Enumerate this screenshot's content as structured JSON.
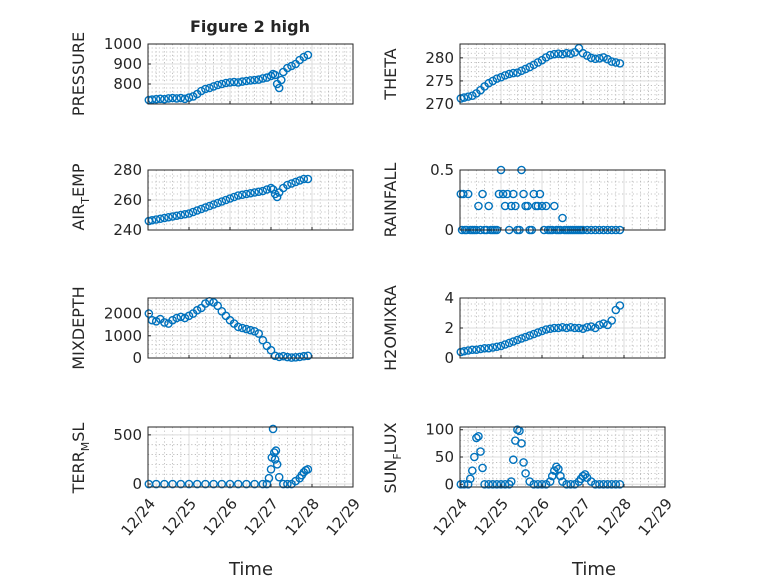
{
  "chart_data": [
    {
      "type": "scatter",
      "title": "Figure 2 high",
      "ylabel": "PRESSURE",
      "ylim": [
        700,
        1000
      ],
      "yticks": [
        800,
        900,
        1000
      ],
      "xlim": [
        "12/24",
        "12/29"
      ],
      "xticks": [
        "12/24",
        "12/25",
        "12/26",
        "12/27",
        "12/28",
        "12/29"
      ],
      "grid": true,
      "x": [
        0.02,
        0.1,
        0.2,
        0.3,
        0.4,
        0.5,
        0.6,
        0.7,
        0.8,
        0.9,
        1.0,
        1.1,
        1.2,
        1.3,
        1.4,
        1.5,
        1.6,
        1.7,
        1.8,
        1.9,
        2.0,
        2.1,
        2.2,
        2.3,
        2.4,
        2.5,
        2.6,
        2.7,
        2.8,
        2.9,
        3.0,
        3.05,
        3.1,
        3.15,
        3.2,
        3.25,
        3.3,
        3.4,
        3.5,
        3.6,
        3.7,
        3.8,
        3.9
      ],
      "y": [
        720,
        722,
        724,
        726,
        724,
        728,
        730,
        728,
        730,
        726,
        732,
        738,
        750,
        765,
        775,
        780,
        788,
        795,
        800,
        805,
        808,
        810,
        808,
        812,
        815,
        818,
        820,
        822,
        828,
        832,
        840,
        850,
        845,
        800,
        780,
        820,
        860,
        880,
        890,
        900,
        920,
        935,
        945
      ]
    },
    {
      "type": "scatter",
      "ylabel": "THETA",
      "ylim": [
        270,
        283
      ],
      "yticks": [
        270,
        275,
        280
      ],
      "xlim": [
        "12/24",
        "12/29"
      ],
      "xticks": [
        "12/24",
        "12/25",
        "12/26",
        "12/27",
        "12/28",
        "12/29"
      ],
      "grid": true,
      "x": [
        0.02,
        0.1,
        0.2,
        0.3,
        0.4,
        0.5,
        0.6,
        0.7,
        0.8,
        0.9,
        1.0,
        1.1,
        1.2,
        1.3,
        1.4,
        1.5,
        1.6,
        1.7,
        1.8,
        1.9,
        2.0,
        2.1,
        2.2,
        2.3,
        2.4,
        2.5,
        2.6,
        2.7,
        2.8,
        2.9,
        3.0,
        3.1,
        3.2,
        3.3,
        3.4,
        3.5,
        3.6,
        3.7,
        3.8,
        3.9
      ],
      "y": [
        271.2,
        271.4,
        271.6,
        271.8,
        272.3,
        273.0,
        273.8,
        274.5,
        275.0,
        275.5,
        275.8,
        276.2,
        276.5,
        276.7,
        276.8,
        277.2,
        277.6,
        278.0,
        278.5,
        279.0,
        279.5,
        280.1,
        280.6,
        280.8,
        280.9,
        280.8,
        281.0,
        280.9,
        281.2,
        282.1,
        281.0,
        280.5,
        280.0,
        279.8,
        279.9,
        280.1,
        279.7,
        279.2,
        279.0,
        278.8
      ]
    },
    {
      "type": "scatter",
      "ylabel": "AIR_TEMP",
      "ylim": [
        240,
        280
      ],
      "yticks": [
        240,
        260,
        280
      ],
      "xlim": [
        "12/24",
        "12/29"
      ],
      "xticks": [
        "12/24",
        "12/25",
        "12/26",
        "12/27",
        "12/28",
        "12/29"
      ],
      "grid": true,
      "x": [
        0.02,
        0.1,
        0.2,
        0.3,
        0.4,
        0.5,
        0.6,
        0.7,
        0.8,
        0.9,
        1.0,
        1.1,
        1.2,
        1.3,
        1.4,
        1.5,
        1.6,
        1.7,
        1.8,
        1.9,
        2.0,
        2.1,
        2.2,
        2.3,
        2.4,
        2.5,
        2.6,
        2.7,
        2.8,
        2.9,
        3.0,
        3.05,
        3.1,
        3.15,
        3.2,
        3.3,
        3.4,
        3.5,
        3.6,
        3.7,
        3.8,
        3.9
      ],
      "y": [
        246,
        246.5,
        247,
        247.5,
        248,
        248.5,
        249,
        249.5,
        250,
        250.5,
        251,
        252,
        253,
        254,
        255,
        256,
        257,
        258,
        259,
        260,
        261,
        262,
        263,
        263.5,
        264,
        264.5,
        265,
        265.5,
        266,
        267,
        268,
        267,
        264,
        262,
        265,
        268,
        270,
        271,
        272,
        273,
        274,
        274
      ]
    },
    {
      "type": "scatter",
      "ylabel": "RAINFALL",
      "ylim": [
        0,
        0.5
      ],
      "yticks": [
        0,
        0.5
      ],
      "xlim": [
        "12/24",
        "12/29"
      ],
      "xticks": [
        "12/24",
        "12/25",
        "12/26",
        "12/27",
        "12/28",
        "12/29"
      ],
      "grid": true,
      "x": [
        0.02,
        0.05,
        0.08,
        0.12,
        0.16,
        0.2,
        0.25,
        0.3,
        0.35,
        0.4,
        0.45,
        0.5,
        0.55,
        0.6,
        0.65,
        0.7,
        0.75,
        0.8,
        0.85,
        0.9,
        0.95,
        1.0,
        1.05,
        1.1,
        1.15,
        1.2,
        1.25,
        1.3,
        1.35,
        1.4,
        1.45,
        1.5,
        1.55,
        1.6,
        1.65,
        1.7,
        1.75,
        1.8,
        1.85,
        1.9,
        1.95,
        2.0,
        2.05,
        2.1,
        2.15,
        2.2,
        2.25,
        2.3,
        2.35,
        2.4,
        2.45,
        2.5,
        2.55,
        2.6,
        2.65,
        2.7,
        2.75,
        2.8,
        2.85,
        2.9,
        2.95,
        3.0,
        3.1,
        3.2,
        3.3,
        3.4,
        3.5,
        3.6,
        3.7,
        3.8,
        3.9
      ],
      "y": [
        0.3,
        0.0,
        0.3,
        0.0,
        0.0,
        0.3,
        0.0,
        0.0,
        0.0,
        0.0,
        0.2,
        0.0,
        0.3,
        0.0,
        0.0,
        0.2,
        0.0,
        0.0,
        0.0,
        0.0,
        0.3,
        0.5,
        0.3,
        0.2,
        0.3,
        0.0,
        0.2,
        0.3,
        0.2,
        0.0,
        0.0,
        0.5,
        0.3,
        0.2,
        0.2,
        0.0,
        0.0,
        0.3,
        0.2,
        0.2,
        0.3,
        0.2,
        0.0,
        0.2,
        0.0,
        0.0,
        0.0,
        0.2,
        0.0,
        0.0,
        0.0,
        0.1,
        0.0,
        0.0,
        0.0,
        0.0,
        0.0,
        0.0,
        0.0,
        0.0,
        0.0,
        0.0,
        0.0,
        0.0,
        0.0,
        0.0,
        0.0,
        0.0,
        0.0,
        0.0,
        0.0
      ]
    },
    {
      "type": "scatter",
      "ylabel": "MIXDEPTH",
      "ylim": [
        0,
        2700
      ],
      "yticks": [
        0,
        1000,
        2000
      ],
      "xlim": [
        "12/24",
        "12/29"
      ],
      "xticks": [
        "12/24",
        "12/25",
        "12/26",
        "12/27",
        "12/28",
        "12/29"
      ],
      "grid": true,
      "x": [
        0.02,
        0.1,
        0.2,
        0.3,
        0.4,
        0.5,
        0.6,
        0.7,
        0.8,
        0.9,
        1.0,
        1.1,
        1.2,
        1.3,
        1.4,
        1.5,
        1.6,
        1.7,
        1.8,
        1.9,
        2.0,
        2.1,
        2.2,
        2.3,
        2.4,
        2.5,
        2.6,
        2.7,
        2.8,
        2.9,
        3.0,
        3.1,
        3.2,
        3.3,
        3.4,
        3.5,
        3.6,
        3.7,
        3.8,
        3.9
      ],
      "y": [
        2000,
        1700,
        1650,
        1750,
        1600,
        1550,
        1700,
        1800,
        1850,
        1800,
        1900,
        2000,
        2150,
        2250,
        2450,
        2550,
        2500,
        2350,
        2100,
        1900,
        1700,
        1550,
        1400,
        1350,
        1300,
        1250,
        1200,
        1100,
        800,
        550,
        350,
        100,
        50,
        80,
        40,
        20,
        30,
        50,
        80,
        100
      ]
    },
    {
      "type": "scatter",
      "ylabel": "H2OMIXRA",
      "ylim": [
        0,
        4
      ],
      "yticks": [
        0,
        2,
        4
      ],
      "xlim": [
        "12/24",
        "12/29"
      ],
      "xticks": [
        "12/24",
        "12/25",
        "12/26",
        "12/27",
        "12/28",
        "12/29"
      ],
      "grid": true,
      "x": [
        0.02,
        0.1,
        0.2,
        0.3,
        0.4,
        0.5,
        0.6,
        0.7,
        0.8,
        0.9,
        1.0,
        1.1,
        1.2,
        1.3,
        1.4,
        1.5,
        1.6,
        1.7,
        1.8,
        1.9,
        2.0,
        2.1,
        2.2,
        2.3,
        2.4,
        2.5,
        2.6,
        2.7,
        2.8,
        2.9,
        3.0,
        3.1,
        3.2,
        3.3,
        3.4,
        3.5,
        3.6,
        3.7,
        3.8,
        3.9
      ],
      "y": [
        0.4,
        0.45,
        0.5,
        0.55,
        0.55,
        0.6,
        0.65,
        0.65,
        0.7,
        0.75,
        0.8,
        0.9,
        1.0,
        1.1,
        1.2,
        1.3,
        1.4,
        1.5,
        1.6,
        1.7,
        1.8,
        1.9,
        1.95,
        2.0,
        2.0,
        2.05,
        2.0,
        2.05,
        2.0,
        2.0,
        1.95,
        2.05,
        2.1,
        2.0,
        2.2,
        2.3,
        2.2,
        2.5,
        3.2,
        3.5
      ]
    },
    {
      "type": "scatter",
      "ylabel": "TERR_MSL",
      "ylim": [
        -30,
        580
      ],
      "yticks": [
        0,
        500
      ],
      "xlim": [
        "12/24",
        "12/29"
      ],
      "xticks": [
        "12/24",
        "12/25",
        "12/26",
        "12/27",
        "12/28",
        "12/29"
      ],
      "grid": true,
      "x": [
        0.02,
        0.2,
        0.4,
        0.6,
        0.8,
        1.0,
        1.2,
        1.4,
        1.6,
        1.8,
        2.0,
        2.2,
        2.4,
        2.6,
        2.8,
        2.9,
        2.95,
        3.0,
        3.02,
        3.05,
        3.08,
        3.1,
        3.12,
        3.15,
        3.2,
        3.3,
        3.4,
        3.5,
        3.6,
        3.7,
        3.75,
        3.8,
        3.85,
        3.9
      ],
      "y": [
        0,
        0,
        0,
        0,
        0,
        0,
        0,
        0,
        0,
        0,
        0,
        0,
        0,
        0,
        0,
        0,
        60,
        150,
        270,
        560,
        320,
        250,
        340,
        200,
        70,
        0,
        0,
        0,
        30,
        60,
        90,
        120,
        140,
        150
      ]
    },
    {
      "type": "scatter",
      "ylabel": "SUN_FLUX",
      "ylim": [
        -5,
        105
      ],
      "yticks": [
        0,
        50,
        100
      ],
      "xlim": [
        "12/24",
        "12/29"
      ],
      "xticks": [
        "12/24",
        "12/25",
        "12/26",
        "12/27",
        "12/28",
        "12/29"
      ],
      "grid": true,
      "x": [
        0.02,
        0.1,
        0.2,
        0.25,
        0.3,
        0.35,
        0.4,
        0.45,
        0.5,
        0.55,
        0.6,
        0.7,
        0.8,
        0.9,
        1.0,
        1.1,
        1.2,
        1.25,
        1.3,
        1.35,
        1.4,
        1.45,
        1.5,
        1.55,
        1.6,
        1.7,
        1.8,
        1.9,
        2.0,
        2.1,
        2.2,
        2.25,
        2.3,
        2.35,
        2.4,
        2.45,
        2.5,
        2.6,
        2.7,
        2.8,
        2.9,
        2.95,
        3.0,
        3.05,
        3.1,
        3.2,
        3.3,
        3.4,
        3.5,
        3.6,
        3.7,
        3.8,
        3.9
      ],
      "y": [
        0,
        0,
        0,
        10,
        25,
        50,
        85,
        88,
        60,
        30,
        0,
        0,
        0,
        0,
        0,
        0,
        0,
        5,
        45,
        80,
        100,
        98,
        75,
        40,
        20,
        5,
        0,
        0,
        0,
        0,
        5,
        15,
        25,
        32,
        28,
        15,
        5,
        0,
        0,
        0,
        5,
        10,
        15,
        18,
        12,
        5,
        0,
        0,
        0,
        0,
        0,
        0,
        0
      ]
    }
  ],
  "labels": {
    "title": "Figure 2 high",
    "xlabel_left": "Time",
    "xlabel_right": "Time",
    "air_temp_main": "AIR",
    "air_temp_sub": "T",
    "air_temp_rest": "EMP",
    "terr_main": "TERR",
    "terr_sub": "M",
    "terr_rest": "SL",
    "sun_main": "SUN",
    "sun_sub": "F",
    "sun_rest": "LUX"
  },
  "colors": {
    "marker": "#0072bd",
    "axis": "#262626"
  }
}
